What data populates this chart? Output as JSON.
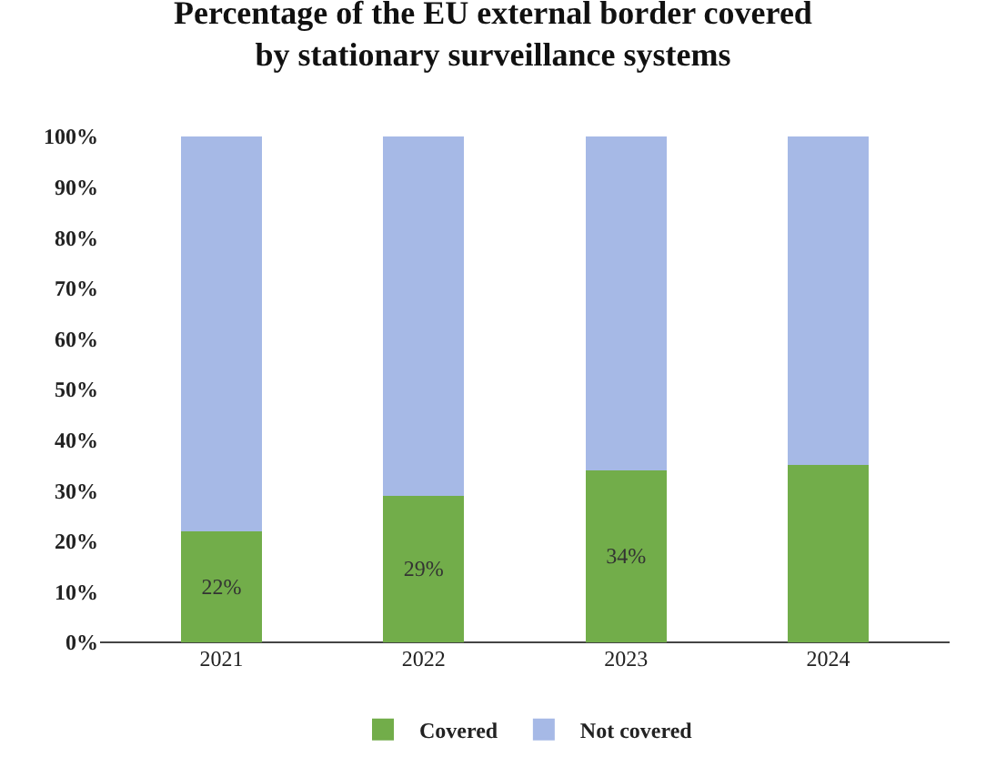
{
  "chart_data": {
    "type": "bar",
    "title": "Percentage of the EU external border covered\nby stationary surveillance systems",
    "stacked": true,
    "categories": [
      "2021",
      "2022",
      "2023",
      "2024"
    ],
    "series": [
      {
        "name": "Covered",
        "color": "#72ad4a",
        "values": [
          22,
          29,
          34,
          35
        ],
        "value_labels": [
          "22%",
          "29%",
          "34%",
          null
        ]
      },
      {
        "name": "Not covered",
        "color": "#a6b9e6",
        "values": [
          78,
          71,
          66,
          65
        ]
      }
    ],
    "ylim": [
      0,
      100
    ],
    "yticks": [
      {
        "value": 0,
        "label": "0%"
      },
      {
        "value": 10,
        "label": "10%"
      },
      {
        "value": 20,
        "label": "20%"
      },
      {
        "value": 30,
        "label": "30%"
      },
      {
        "value": 40,
        "label": "40%"
      },
      {
        "value": 50,
        "label": "50%"
      },
      {
        "value": 60,
        "label": "60%"
      },
      {
        "value": 70,
        "label": "70%"
      },
      {
        "value": 80,
        "label": "80%"
      },
      {
        "value": 90,
        "label": "90%"
      },
      {
        "value": 100,
        "label": "100%"
      }
    ],
    "grid": false,
    "legend": "bottom"
  }
}
